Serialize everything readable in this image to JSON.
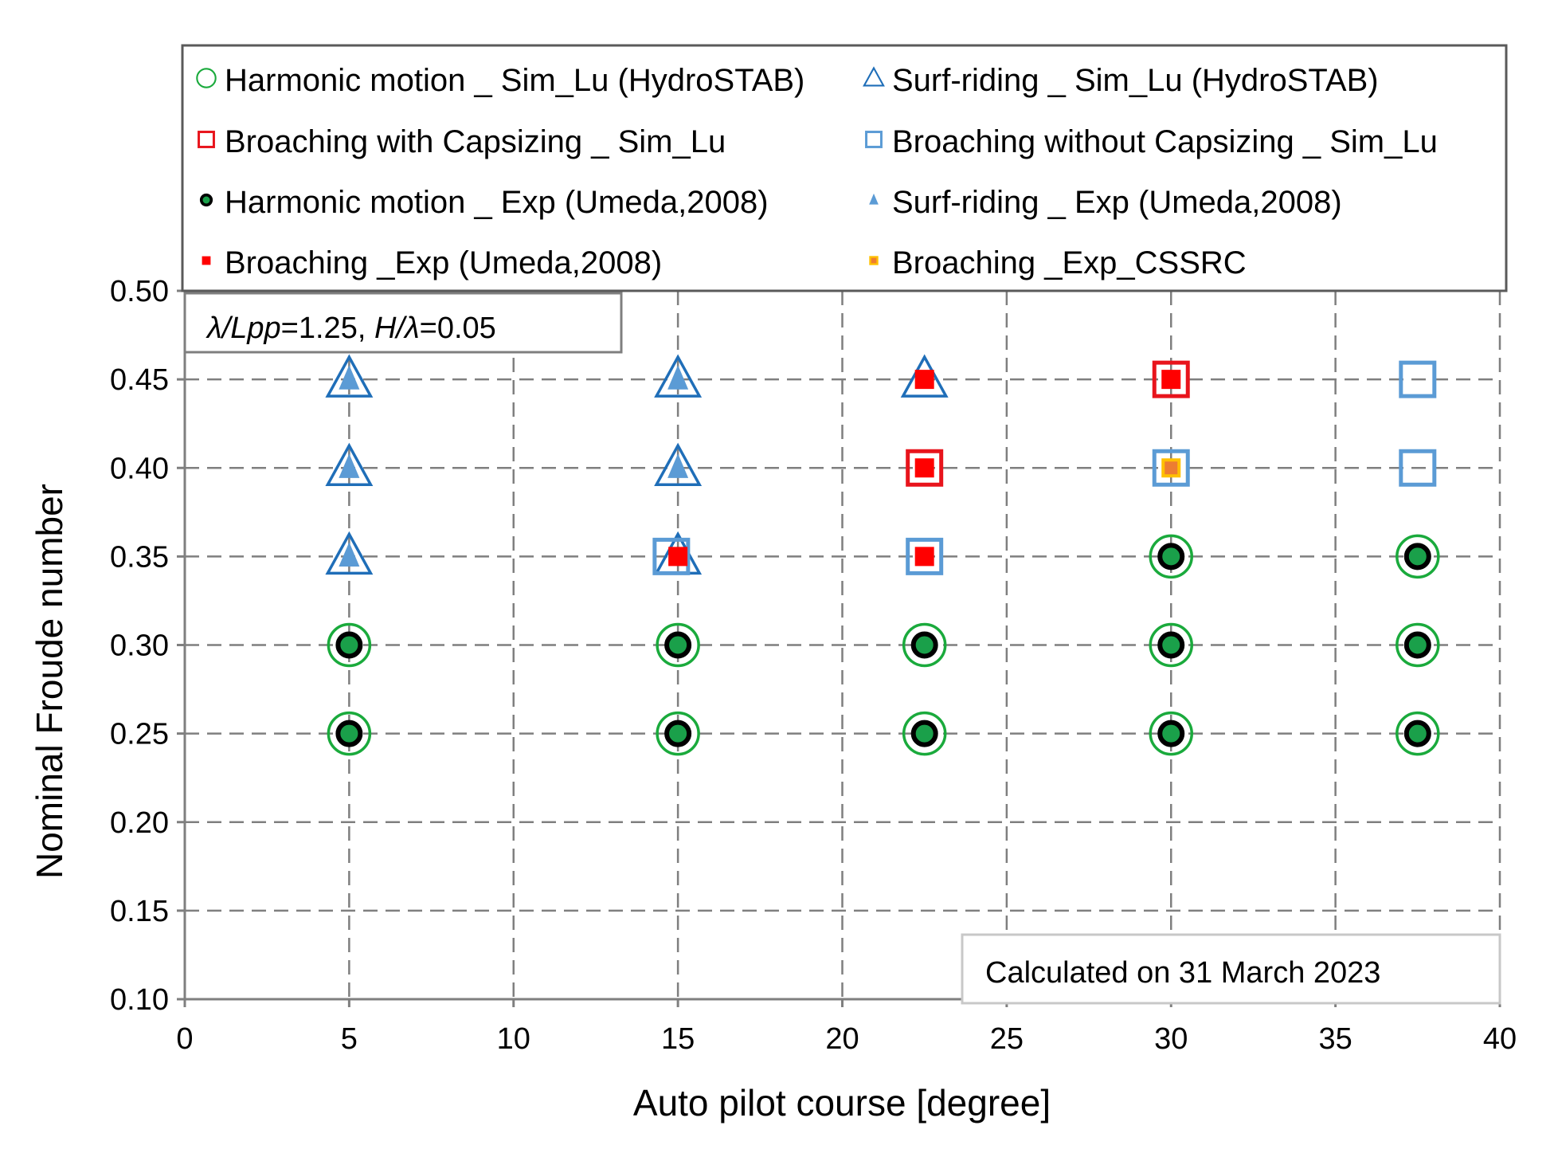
{
  "chart_data": {
    "type": "scatter",
    "title": "",
    "xlabel": "Auto pilot course [degree]",
    "ylabel": "Nominal Froude number",
    "xlim": [
      0,
      40
    ],
    "ylim": [
      0.1,
      0.5
    ],
    "xticks": [
      "0",
      "5",
      "10",
      "15",
      "20",
      "25",
      "30",
      "35",
      "40"
    ],
    "yticks": [
      "0.10",
      "0.15",
      "0.20",
      "0.25",
      "0.30",
      "0.35",
      "0.40",
      "0.45",
      "0.50"
    ],
    "grid": true,
    "legend_position": "top",
    "annotations": {
      "params_prefix1": "λ/Lpp",
      "params_mid": "=1.25, ",
      "params_prefix2": "H/λ",
      "params_suffix": "=0.05",
      "calc_note": "Calculated on 31 March  2023"
    },
    "series": [
      {
        "name": "Harmonic motion _ Sim_Lu (HydroSTAB)",
        "marker": "circle-open",
        "color": "#1aaa3c",
        "points": [
          [
            5,
            0.25
          ],
          [
            5,
            0.3
          ],
          [
            15,
            0.25
          ],
          [
            15,
            0.3
          ],
          [
            22.5,
            0.25
          ],
          [
            22.5,
            0.3
          ],
          [
            30,
            0.25
          ],
          [
            30,
            0.3
          ],
          [
            30,
            0.35
          ],
          [
            37.5,
            0.25
          ],
          [
            37.5,
            0.3
          ],
          [
            37.5,
            0.35
          ]
        ]
      },
      {
        "name": "Surf-riding _ Sim_Lu (HydroSTAB)",
        "marker": "triangle-open",
        "color": "#1f6eb8",
        "points": [
          [
            5,
            0.35
          ],
          [
            5,
            0.4
          ],
          [
            5,
            0.45
          ],
          [
            15,
            0.35
          ],
          [
            15,
            0.4
          ],
          [
            15,
            0.45
          ],
          [
            22.5,
            0.45
          ]
        ]
      },
      {
        "name": "Broaching with Capsizing _ Sim_Lu",
        "marker": "square-open",
        "color": "#e8141c",
        "points": [
          [
            22.5,
            0.4
          ],
          [
            30,
            0.45
          ]
        ]
      },
      {
        "name": "Broaching without Capsizing _ Sim_Lu",
        "marker": "square-open",
        "color": "#5b9bd5",
        "points": [
          [
            14.8,
            0.35
          ],
          [
            22.5,
            0.35
          ],
          [
            30,
            0.4
          ],
          [
            37.5,
            0.4
          ],
          [
            37.5,
            0.45
          ]
        ]
      },
      {
        "name": "Harmonic motion _ Exp (Umeda,2008)",
        "marker": "circle-filled-ring",
        "color": "#1aa04a",
        "points": [
          [
            5,
            0.25
          ],
          [
            5,
            0.3
          ],
          [
            15,
            0.25
          ],
          [
            15,
            0.3
          ],
          [
            22.5,
            0.25
          ],
          [
            22.5,
            0.3
          ],
          [
            30,
            0.25
          ],
          [
            30,
            0.3
          ],
          [
            30,
            0.35
          ],
          [
            37.5,
            0.25
          ],
          [
            37.5,
            0.3
          ],
          [
            37.5,
            0.35
          ]
        ]
      },
      {
        "name": "Surf-riding _ Exp (Umeda,2008)",
        "marker": "triangle-filled",
        "color": "#5b9bd5",
        "points": [
          [
            5,
            0.35
          ],
          [
            5,
            0.4
          ],
          [
            5,
            0.45
          ],
          [
            15,
            0.4
          ],
          [
            15,
            0.45
          ]
        ]
      },
      {
        "name": "Broaching _Exp (Umeda,2008)",
        "marker": "square-filled",
        "color": "#ff0000",
        "points": [
          [
            15,
            0.35
          ],
          [
            22.5,
            0.35
          ],
          [
            22.5,
            0.4
          ],
          [
            22.5,
            0.45
          ],
          [
            30,
            0.45
          ]
        ]
      },
      {
        "name": "Broaching _Exp_CSSRC",
        "marker": "square-filled-bordered",
        "color": "#ed7d31",
        "points": [
          [
            30,
            0.4
          ]
        ]
      }
    ]
  }
}
